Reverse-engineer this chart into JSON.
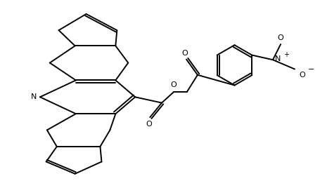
{
  "bg_color": "#ffffff",
  "line_color": "#000000",
  "line_width": 1.4,
  "fig_width": 4.56,
  "fig_height": 2.68,
  "dpi": 100,
  "xlim": [
    0,
    11.4
  ],
  "ylim": [
    0,
    6.7
  ]
}
